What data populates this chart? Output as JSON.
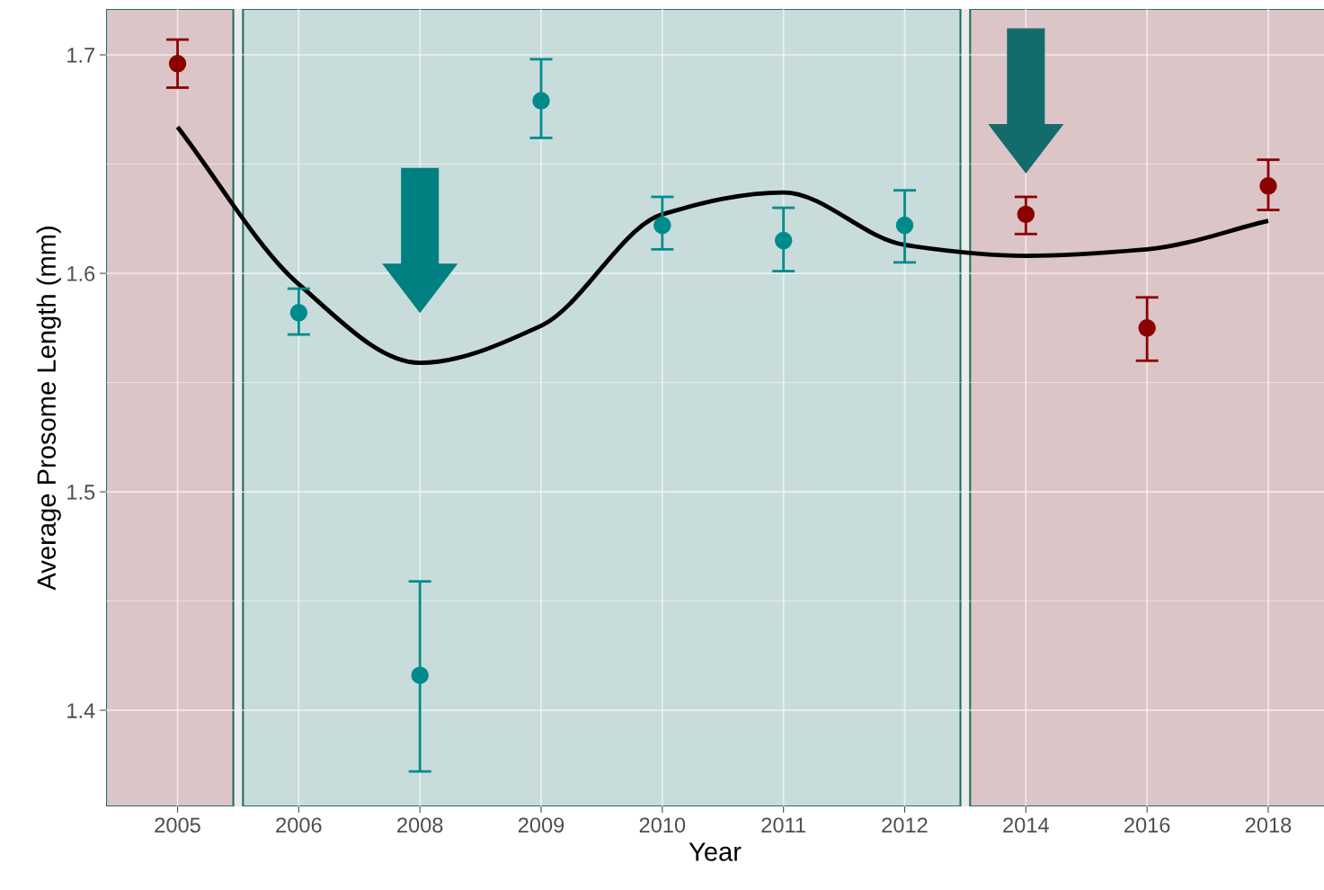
{
  "chart_data": {
    "type": "scatter",
    "xlabel": "Year",
    "ylabel": "Average Prosome Length (mm)",
    "categories": [
      "2005",
      "2006",
      "2008",
      "2009",
      "2010",
      "2011",
      "2012",
      "2014",
      "2016",
      "2018"
    ],
    "ylim": [
      1.356,
      1.721
    ],
    "yticks": [
      1.4,
      1.5,
      1.6,
      1.7
    ],
    "grid": true,
    "marker": "circle",
    "bands": [
      {
        "axis": "x",
        "from": "2005",
        "to": "2005",
        "color": "#dcc5c7"
      },
      {
        "axis": "x",
        "from": "2006",
        "to": "2012",
        "color": "#c8dcdc"
      },
      {
        "axis": "x",
        "from": "2014",
        "to": "2018",
        "color": "#dcc5c7"
      }
    ],
    "series": [
      {
        "values": [
          1.696,
          1.582,
          1.416,
          1.679,
          1.622,
          1.615,
          1.622,
          1.627,
          1.575,
          1.64
        ],
        "colors": [
          "#8b0000",
          "#008b8b",
          "#008b8b",
          "#008b8b",
          "#008b8b",
          "#008b8b",
          "#008b8b",
          "#8b0000",
          "#8b0000",
          "#8b0000"
        ],
        "errors": [
          [
            1.685,
            1.707
          ],
          [
            1.572,
            1.593
          ],
          [
            1.372,
            1.459
          ],
          [
            1.662,
            1.698
          ],
          [
            1.611,
            1.635
          ],
          [
            1.601,
            1.63
          ],
          [
            1.605,
            1.638
          ],
          [
            1.618,
            1.635
          ],
          [
            1.56,
            1.589
          ],
          [
            1.629,
            1.652
          ]
        ]
      },
      {
        "type": "line",
        "color": "#000000",
        "marker": "none",
        "values": [
          1.667,
          1.595,
          1.559,
          1.576,
          1.627,
          1.637,
          1.613,
          1.608,
          1.611,
          1.624
        ]
      }
    ]
  }
}
